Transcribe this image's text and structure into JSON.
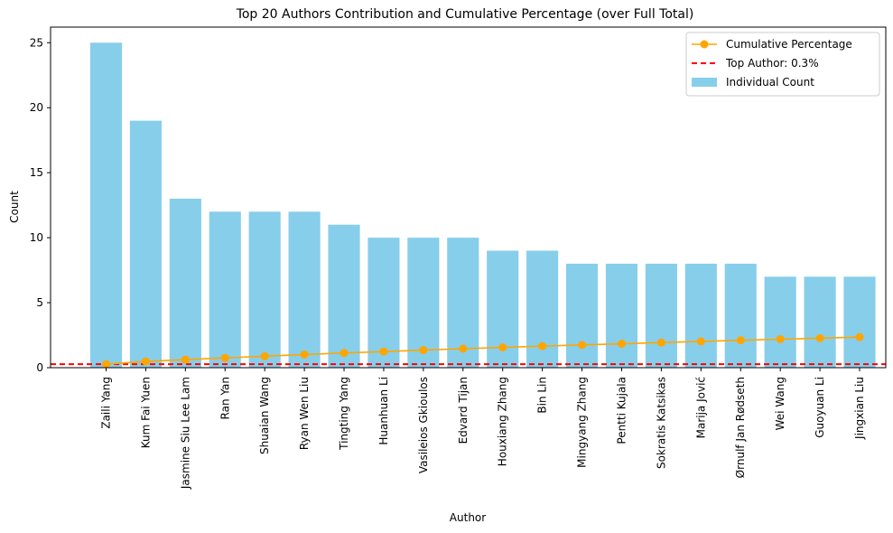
{
  "chart_data": {
    "type": "bar",
    "title": "Top 20 Authors Contribution and Cumulative Percentage (over Full Total)",
    "xlabel": "Author",
    "ylabel": "Count",
    "ylim": [
      0,
      26.2
    ],
    "yticks": [
      0,
      5,
      10,
      15,
      20,
      25
    ],
    "grid": false,
    "legend_position": "top-right",
    "categories": [
      "Zaili Yang",
      "Kum Fai Yuen",
      "Jasmine Siu Lee Lam",
      "Ran Yan",
      "Shuaian Wang",
      "Ryan Wen Liu",
      "Tingting Yang",
      "Huanhuan Li",
      "Vasileios Gkioulos",
      "Edvard Tijan",
      "Houxiang Zhang",
      "Bin Lin",
      "Mingyang Zhang",
      "Pentti Kujala",
      "Sokratis Katsikas",
      "Marija Jović",
      "Ørnulf Jan Rødseth",
      "Wei Wang",
      "Guoyuan Li",
      "Jingxian Liu"
    ],
    "series": [
      {
        "name": "Individual Count",
        "kind": "bar",
        "color": "#87ceeb",
        "values": [
          25,
          19,
          13,
          12,
          12,
          12,
          11,
          10,
          10,
          10,
          9,
          9,
          8,
          8,
          8,
          8,
          8,
          7,
          7,
          7
        ]
      },
      {
        "name": "Cumulative Percentage",
        "kind": "line",
        "color": "#ffa500",
        "marker": "circle",
        "values": [
          0.27,
          0.48,
          0.62,
          0.75,
          0.88,
          1.01,
          1.13,
          1.24,
          1.35,
          1.46,
          1.56,
          1.66,
          1.75,
          1.84,
          1.93,
          2.02,
          2.11,
          2.19,
          2.27,
          2.35
        ]
      }
    ],
    "reference_lines": [
      {
        "name": "Top Author: 0.3%",
        "value": 0.27,
        "color": "#ff0000",
        "style": "dashed"
      }
    ]
  }
}
